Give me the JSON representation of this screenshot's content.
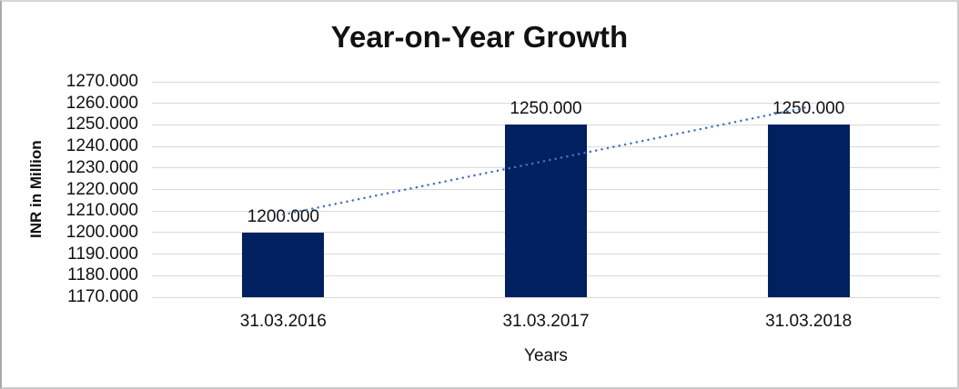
{
  "chart_data": {
    "type": "bar",
    "title": "Year-on-Year Growth",
    "xlabel": "Years",
    "ylabel": "INR in Million",
    "categories": [
      "31.03.2016",
      "31.03.2017",
      "31.03.2018"
    ],
    "values": [
      1200,
      1250,
      1250
    ],
    "data_labels": [
      "1200.000",
      "1250.000",
      "1250.000"
    ],
    "ylim": [
      1170,
      1270
    ],
    "ytick_step": 10,
    "ytick_labels": [
      "1170.000",
      "1180.000",
      "1190.000",
      "1200.000",
      "1210.000",
      "1220.000",
      "1230.000",
      "1240.000",
      "1250.000",
      "1260.000",
      "1270.000"
    ],
    "grid": true,
    "legend": "none",
    "bar_color": "#002060",
    "gridline_color": "#d9d9d9",
    "trendline": {
      "type": "linear",
      "style": "dotted",
      "color": "#4472c4"
    }
  }
}
